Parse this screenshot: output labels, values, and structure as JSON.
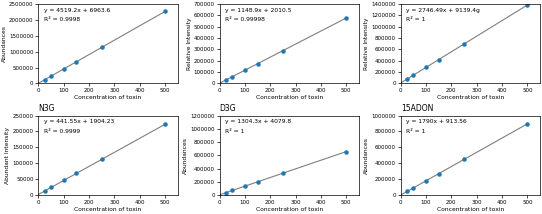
{
  "chart_data": [
    {
      "type": "scatter",
      "x": [
        0,
        25,
        50,
        100,
        150,
        250,
        500
      ],
      "series": [
        {
          "type": "line",
          "values": [
            6963.6,
            119943.6,
            232923.6,
            458883.6,
            684843.6,
            1136763.6,
            2266563.6
          ]
        },
        {
          "type": "scatter",
          "values": [
            null,
            119943.6,
            232923.6,
            458883.6,
            684843.6,
            1136763.6,
            2266563.6
          ]
        }
      ],
      "annotations": [
        "y = 4519.2x + 6963.6",
        "R² = 0.9998"
      ],
      "x_label": "Concentration of toxin",
      "y_label": "Abundances",
      "xlim": [
        0,
        550
      ],
      "ylim": [
        0,
        2500000
      ],
      "xticks": [
        0,
        100,
        200,
        300,
        400,
        500
      ],
      "yticks": [
        0,
        500000,
        1000000,
        1500000,
        2000000,
        2500000
      ]
    },
    {
      "type": "scatter",
      "x": [
        0,
        25,
        50,
        100,
        150,
        250,
        500
      ],
      "series": [
        {
          "type": "line",
          "values": [
            2010.5,
            30733,
            59455.5,
            116900.5,
            174345.5,
            289235.5,
            576460.5
          ]
        },
        {
          "type": "scatter",
          "values": [
            null,
            30733,
            59455.5,
            116900.5,
            174345.5,
            289235.5,
            576460.5
          ]
        }
      ],
      "annotations": [
        "y = 1148.9x + 2010.5",
        "R² = 0.99998"
      ],
      "x_label": "Concentration of toxin",
      "y_label": "Relative Intensity",
      "xlim": [
        0,
        550
      ],
      "ylim": [
        0,
        700000
      ],
      "xticks": [
        0,
        100,
        200,
        300,
        400,
        500
      ],
      "yticks": [
        0,
        100000,
        200000,
        300000,
        400000,
        500000,
        600000,
        700000
      ]
    },
    {
      "type": "scatter",
      "x": [
        0,
        25,
        50,
        100,
        150,
        250,
        500
      ],
      "series": [
        {
          "type": "line",
          "values": [
            9139.4,
            77801.65,
            146463.9,
            283788.4,
            421112.9,
            695761.9,
            1382384.4
          ]
        },
        {
          "type": "scatter",
          "values": [
            null,
            77801.65,
            146463.9,
            283788.4,
            421112.9,
            695761.9,
            1382384.4
          ]
        }
      ],
      "annotations": [
        "y = 2746.49x + 9139.4g",
        "R² = 1"
      ],
      "x_label": "Concentration of toxin",
      "y_label": "Relative Intensity",
      "xlim": [
        0,
        550
      ],
      "ylim": [
        0,
        1400000
      ],
      "xticks": [
        0,
        100,
        200,
        300,
        400,
        500
      ],
      "yticks": [
        0,
        200000,
        400000,
        600000,
        800000,
        1000000,
        1200000,
        1400000
      ]
    },
    {
      "type": "scatter",
      "title": "N3G",
      "x": [
        0,
        25,
        50,
        100,
        150,
        250,
        500
      ],
      "series": [
        {
          "type": "line",
          "values": [
            1904.23,
            12942.98,
            23981.73,
            46059.23,
            68136.73,
            112291.73,
            222679.23
          ]
        },
        {
          "type": "scatter",
          "values": [
            null,
            12942.98,
            23981.73,
            46059.23,
            68136.73,
            112291.73,
            222679.23
          ]
        }
      ],
      "annotations": [
        "y = 441.55x + 1904.23",
        "R² = 0.9999"
      ],
      "x_label": "Concentration of toxin",
      "y_label": "Abundant Intensity",
      "xlim": [
        0,
        550
      ],
      "ylim": [
        0,
        250000
      ],
      "xticks": [
        0,
        100,
        200,
        300,
        400,
        500
      ],
      "yticks": [
        0,
        50000,
        100000,
        150000,
        200000,
        250000
      ]
    },
    {
      "type": "scatter",
      "title": "D3G",
      "x": [
        0,
        25,
        50,
        100,
        150,
        250,
        500
      ],
      "series": [
        {
          "type": "line",
          "values": [
            4079.8,
            36687.3,
            69294.8,
            134509.8,
            199724.8,
            330154.8,
            656229.8
          ]
        },
        {
          "type": "scatter",
          "values": [
            null,
            36687.3,
            69294.8,
            134509.8,
            199724.8,
            330154.8,
            656229.8
          ]
        }
      ],
      "annotations": [
        "y = 1304.3x + 4079.8",
        "R² = 1"
      ],
      "x_label": "Concentration of toxin",
      "y_label": "Abundances",
      "xlim": [
        0,
        550
      ],
      "ylim": [
        0,
        1200000
      ],
      "xticks": [
        0,
        100,
        200,
        300,
        400,
        500
      ],
      "yticks": [
        0,
        200000,
        400000,
        600000,
        800000,
        1000000,
        1200000
      ]
    },
    {
      "type": "scatter",
      "title": "15ADON",
      "x": [
        0,
        25,
        50,
        100,
        150,
        250,
        500
      ],
      "series": [
        {
          "type": "line",
          "values": [
            913.56,
            45663.56,
            90413.56,
            179913.56,
            269413.56,
            448413.56,
            895913.56
          ]
        },
        {
          "type": "scatter",
          "values": [
            null,
            45663.56,
            90413.56,
            179913.56,
            269413.56,
            448413.56,
            895913.56
          ]
        }
      ],
      "annotations": [
        "y = 1790x + 913.56",
        "R² = 1"
      ],
      "x_label": "Concentration of toxin",
      "y_label": "Abundances",
      "xlim": [
        0,
        550
      ],
      "ylim": [
        0,
        1000000
      ],
      "xticks": [
        0,
        100,
        200,
        300,
        400,
        500
      ],
      "yticks": [
        0,
        200000,
        400000,
        600000,
        800000,
        1000000
      ]
    }
  ]
}
